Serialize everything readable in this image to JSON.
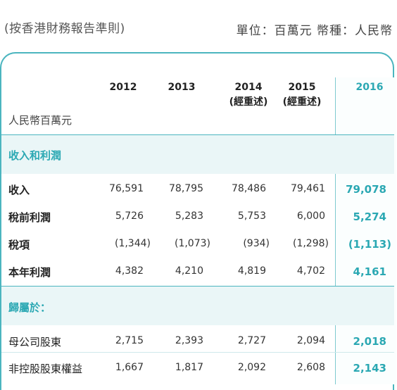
{
  "header": {
    "left_text": "(按香港財務報告準則)",
    "right_text": "單位：百萬元  幣種：人民幣"
  },
  "table": {
    "unit_label": "人民幣百萬元",
    "columns": [
      {
        "year": "2012",
        "note": ""
      },
      {
        "year": "2013",
        "note": ""
      },
      {
        "year": "2014",
        "note": "(經重述)"
      },
      {
        "year": "2015",
        "note": "(經重述)"
      },
      {
        "year": "2016",
        "note": ""
      }
    ],
    "sections": [
      {
        "title": "收入和利潤",
        "rows": [
          {
            "label": "收入",
            "values": [
              "76,591",
              "78,795",
              "78,486",
              "79,461",
              "79,078"
            ]
          },
          {
            "label": "稅前利潤",
            "values": [
              "5,726",
              "5,283",
              "5,753",
              "6,000",
              "5,274"
            ]
          },
          {
            "label": "稅項",
            "values": [
              "(1,344)",
              "(1,073)",
              "(934)",
              "(1,298)",
              "(1,113)"
            ]
          },
          {
            "label": "本年利潤",
            "values": [
              "4,382",
              "4,210",
              "4,819",
              "4,702",
              "4,161"
            ]
          }
        ]
      },
      {
        "title": "歸屬於：",
        "rows": [
          {
            "label": "母公司股東",
            "values": [
              "2,715",
              "2,393",
              "2,727",
              "2,094",
              "2,018"
            ]
          },
          {
            "label": "非控股股東權益",
            "values": [
              "1,667",
              "1,817",
              "2,092",
              "2,608",
              "2,143"
            ]
          }
        ]
      }
    ]
  },
  "colors": {
    "accent": "#2ba8b3",
    "border": "#4bb5bf",
    "section_band": "#eaf6f7"
  }
}
